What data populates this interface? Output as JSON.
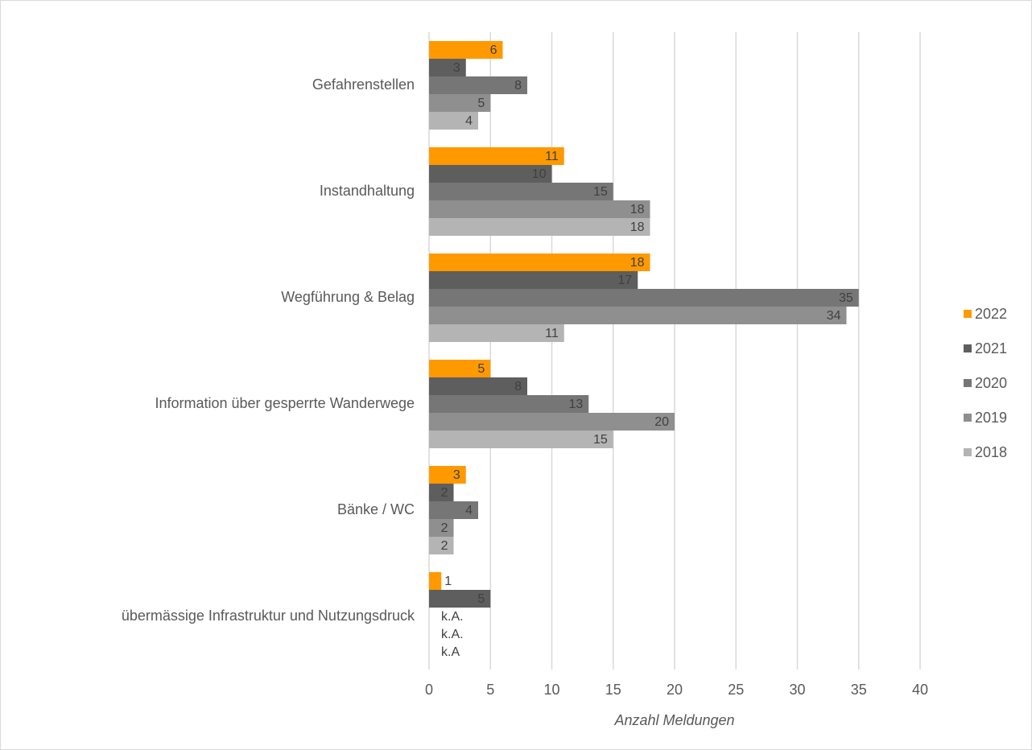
{
  "chart_data": {
    "type": "barh",
    "xlabel": "Anzahl Meldungen",
    "categories": [
      "Gefahrenstellen",
      "Instandhaltung",
      "Wegführung & Belag",
      "Information über gesperrte Wanderwege",
      "Bänke / WC",
      "übermässige Infrastruktur und Nutzungsdruck"
    ],
    "series": [
      {
        "name": "2022",
        "color": "#ff9900",
        "values": [
          6,
          11,
          18,
          5,
          3,
          1
        ]
      },
      {
        "name": "2021",
        "color": "#5e5e5e",
        "values": [
          3,
          10,
          17,
          8,
          2,
          5
        ]
      },
      {
        "name": "2020",
        "color": "#767676",
        "values": [
          8,
          15,
          35,
          13,
          4,
          null
        ],
        "value_labels": [
          "8",
          "15",
          "35",
          "13",
          "4",
          "k.A."
        ]
      },
      {
        "name": "2019",
        "color": "#8f8f8f",
        "values": [
          5,
          18,
          34,
          20,
          2,
          null
        ],
        "value_labels": [
          "5",
          "18",
          "34",
          "20",
          "2",
          "k.A."
        ]
      },
      {
        "name": "2018",
        "color": "#b4b4b4",
        "values": [
          4,
          18,
          11,
          15,
          2,
          null
        ],
        "value_labels": [
          "4",
          "18",
          "11",
          "15",
          "2",
          "k.A"
        ]
      }
    ],
    "xlim": [
      0,
      40
    ],
    "xticks": [
      0,
      5,
      10,
      15,
      20,
      25,
      30,
      35,
      40
    ],
    "grid": true,
    "legend": "right"
  }
}
